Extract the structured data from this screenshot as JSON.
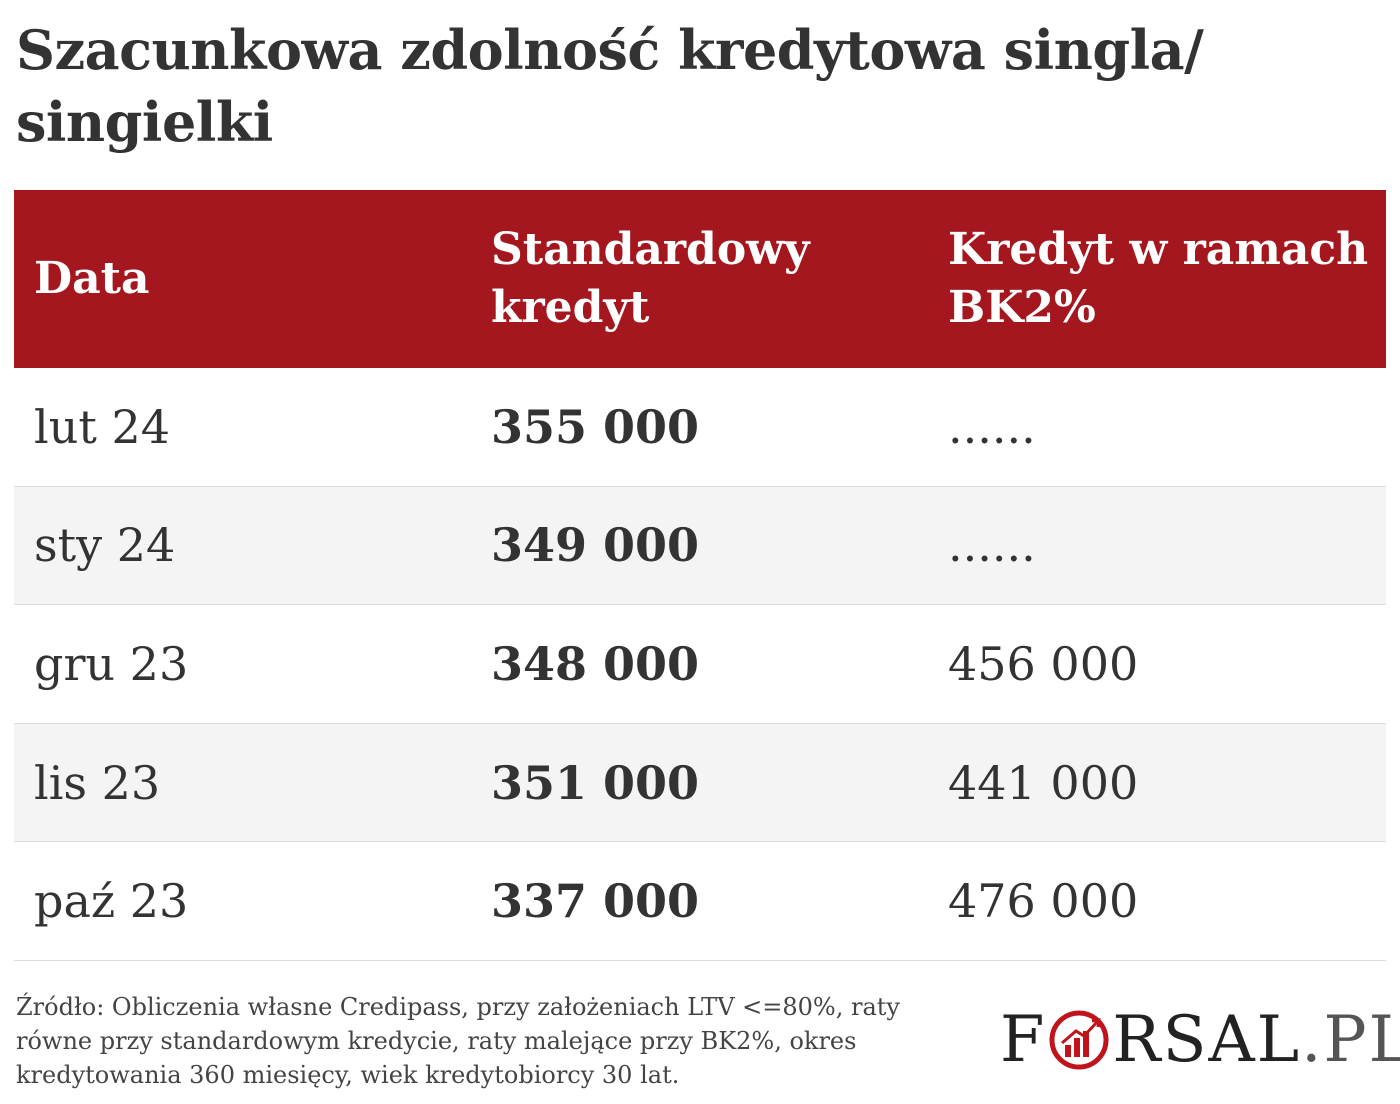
{
  "title": "Szacunkowa zdolność kredytowa singla/ singielki",
  "chart_data": {
    "type": "table",
    "columns": [
      "Data",
      "Standardowy kredyt",
      "Kredyt w ramach BK2%"
    ],
    "rows": [
      [
        "lut 24",
        "355 000",
        "......"
      ],
      [
        "sty 24",
        "349 000",
        "......"
      ],
      [
        "gru 23",
        "348 000",
        "456 000"
      ],
      [
        "lis 23",
        "351 000",
        "441 000"
      ],
      [
        "paź 23",
        "337 000",
        "476 000"
      ]
    ]
  },
  "source": "Źródło: Obliczenia własne Credipass, przy założeniach LTV <=80%, raty równe przy standardowym kredycie, raty malejące przy BK2%, okres kredytowania 360 miesięcy, wiek kredytobiorcy 30 lat.",
  "logo": {
    "text": "FORSAL.PL",
    "accent_color": "#c0141c"
  },
  "colors": {
    "header_bg": "#a5171e",
    "alt_row_bg": "#f4f4f4"
  }
}
